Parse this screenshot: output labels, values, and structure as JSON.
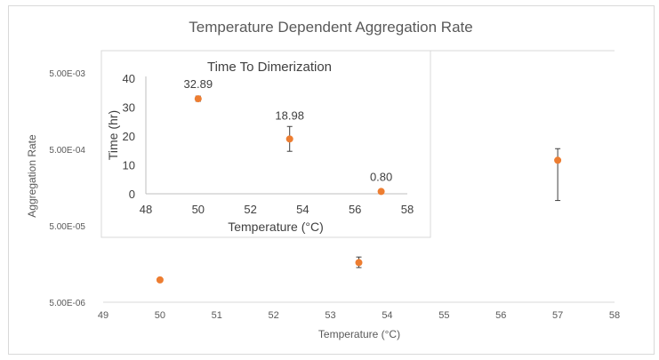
{
  "chart_data": [
    {
      "type": "scatter",
      "title": "Temperature Dependent Aggregation Rate",
      "xlabel": "Temperature (°C)",
      "ylabel": "Aggregation Rate",
      "xlim": [
        49,
        58
      ],
      "ylim": [
        5e-06,
        0.005
      ],
      "yscale": "log",
      "xticks": [
        "49",
        "50",
        "51",
        "52",
        "53",
        "54",
        "55",
        "56",
        "57",
        "58"
      ],
      "yticks": [
        {
          "label": "5.00E-06",
          "value": 5e-06
        },
        {
          "label": "5.00E-05",
          "value": 5e-05
        },
        {
          "label": "5.00E-04",
          "value": 0.0005
        },
        {
          "label": "5.00E-03",
          "value": 0.005
        }
      ],
      "points": [
        {
          "x": 50,
          "y": 9.8e-06,
          "err_low": 9.8e-06,
          "err_high": 9.8e-06
        },
        {
          "x": 53.5,
          "y": 1.65e-05,
          "err_low": 1.42e-05,
          "err_high": 1.95e-05
        },
        {
          "x": 57,
          "y": 0.00036,
          "err_low": 0.000107,
          "err_high": 0.00051
        }
      ],
      "marker_color": "#ed7d31",
      "grid": false
    },
    {
      "type": "scatter",
      "title": "Time To Dimerization",
      "xlabel": "Temperature (°C)",
      "ylabel": "Time (hr)",
      "xlim": [
        48,
        58
      ],
      "ylim": [
        0,
        40
      ],
      "xticks": [
        "48",
        "50",
        "52",
        "54",
        "56",
        "58"
      ],
      "yticks": [
        "0",
        "10",
        "20",
        "30",
        "40"
      ],
      "points": [
        {
          "x": 50,
          "y": 32.89,
          "label": "32.89",
          "err_low": 32.0,
          "err_high": 33.8
        },
        {
          "x": 53.5,
          "y": 18.98,
          "label": "18.98",
          "err_low": 14.7,
          "err_high": 23.3
        },
        {
          "x": 57,
          "y": 0.8,
          "label": "0.80",
          "err_low": 0.3,
          "err_high": 1.2
        }
      ],
      "marker_color": "#ed7d31",
      "grid": false
    }
  ]
}
